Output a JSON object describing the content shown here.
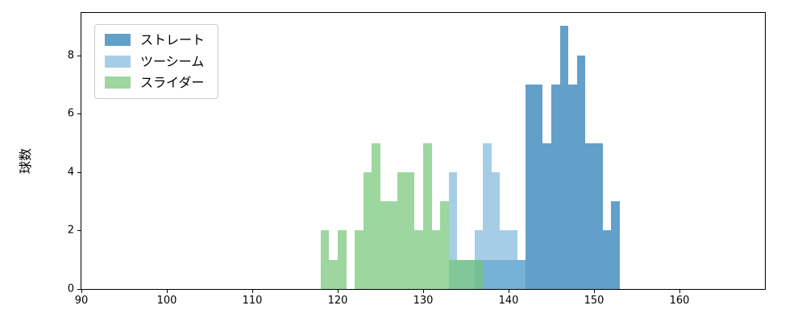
{
  "chart_data": {
    "type": "histogram",
    "title": "",
    "xlabel": "",
    "ylabel": "球数",
    "xlim": [
      90,
      170
    ],
    "ylim": [
      0,
      9.45
    ],
    "xticks": [
      90,
      100,
      110,
      120,
      130,
      140,
      150,
      160
    ],
    "yticks": [
      0,
      2,
      4,
      6,
      8
    ],
    "bin_width": 1,
    "grid": false,
    "legend_position": "upper left",
    "series": [
      {
        "name": "ストレート",
        "color": "#1f77b4",
        "alpha": 0.7,
        "bin_start": 136,
        "counts": [
          1,
          1,
          1,
          1,
          1,
          1,
          7,
          7,
          5,
          7,
          9,
          7,
          8,
          5,
          5,
          2,
          3
        ]
      },
      {
        "name": "ツーシーム",
        "color": "#7fb8dc",
        "alpha": 0.7,
        "bin_start": 133,
        "counts": [
          4,
          1,
          1,
          2,
          5,
          4,
          2,
          2,
          1
        ]
      },
      {
        "name": "スライダー",
        "color": "#74c476",
        "alpha": 0.7,
        "bin_start": 118,
        "counts": [
          2,
          1,
          2,
          0,
          2,
          4,
          5,
          3,
          3,
          4,
          4,
          2,
          5,
          2,
          3,
          1,
          1,
          1,
          1
        ]
      }
    ]
  }
}
